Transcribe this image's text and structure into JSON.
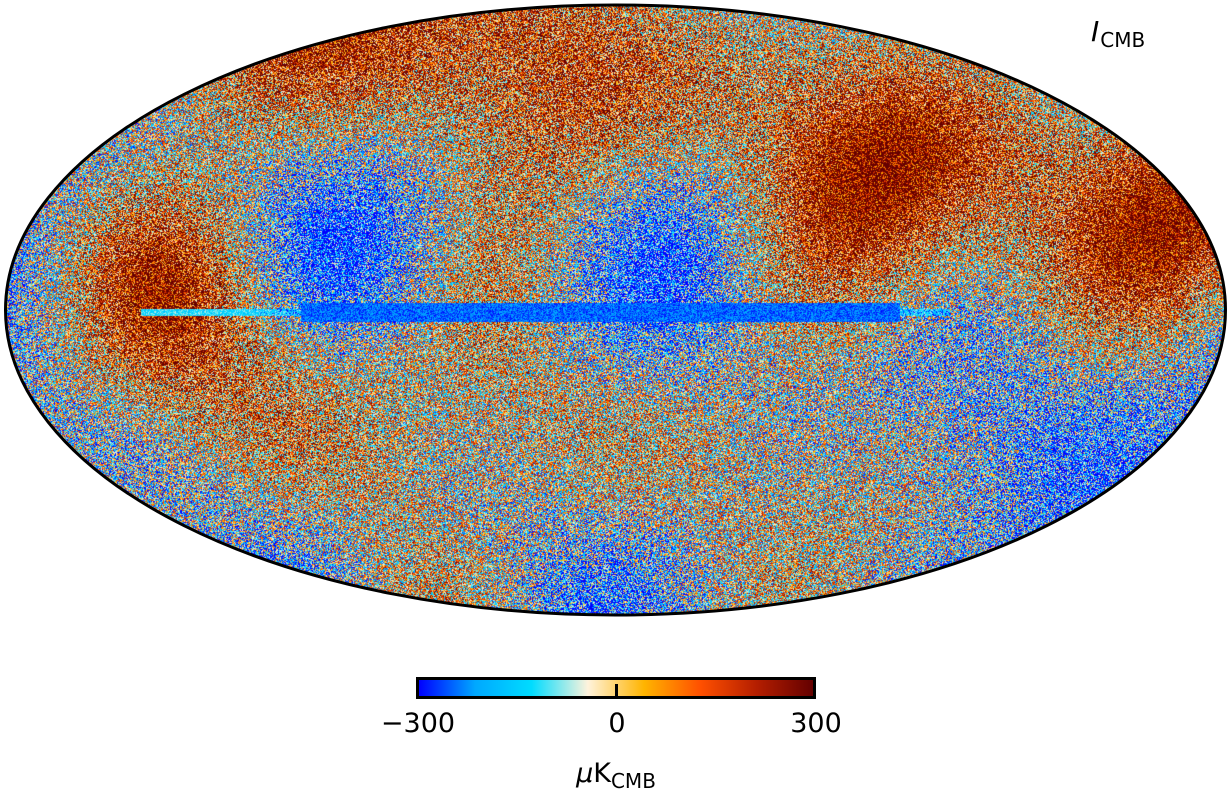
{
  "map": {
    "projection": "mollweide",
    "label_main": "I",
    "label_sub": "CMB",
    "outline_color": "#000000"
  },
  "colorbar": {
    "min": -300,
    "mid": 0,
    "max": 300,
    "tick_min_label": "−300",
    "tick_mid_label": "0",
    "tick_max_label": "300",
    "unit_prefix": "μ",
    "unit_main": "K",
    "unit_sub": "CMB",
    "colormap": "planck",
    "colors": [
      "#0000ff",
      "#00a8ff",
      "#00dcff",
      "#fff3dc",
      "#ffb400",
      "#ff5000",
      "#b41e00",
      "#640000"
    ]
  }
}
